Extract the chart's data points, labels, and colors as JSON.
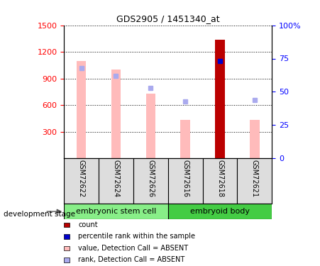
{
  "title": "GDS2905 / 1451340_at",
  "samples": [
    "GSM72622",
    "GSM72624",
    "GSM72626",
    "GSM72616",
    "GSM72618",
    "GSM72621"
  ],
  "groups": {
    "embryonic stem cell": [
      0,
      1,
      2
    ],
    "embryoid body": [
      3,
      4,
      5
    ]
  },
  "group_colors": {
    "embryonic stem cell": "#88ee88",
    "embryoid body": "#44cc44"
  },
  "bar_values_absent": [
    1100,
    1000,
    730,
    430,
    null,
    430
  ],
  "bar_values_count": [
    null,
    null,
    null,
    null,
    1340,
    null
  ],
  "rank_absent_pct": [
    68,
    62,
    53,
    43,
    null,
    44
  ],
  "rank_count_pct": [
    null,
    null,
    null,
    null,
    73,
    null
  ],
  "ylim_left": [
    0,
    1500
  ],
  "ylim_right": [
    0,
    100
  ],
  "yticks_left": [
    300,
    600,
    900,
    1200,
    1500
  ],
  "yticks_right": [
    0,
    25,
    50,
    75,
    100
  ],
  "color_count": "#bb0000",
  "color_rank_count": "#0000cc",
  "color_absent_bar": "#ffbbbb",
  "color_absent_rank": "#aaaaee",
  "legend_items": [
    {
      "label": "count",
      "color": "#bb0000"
    },
    {
      "label": "percentile rank within the sample",
      "color": "#0000cc"
    },
    {
      "label": "value, Detection Call = ABSENT",
      "color": "#ffbbbb"
    },
    {
      "label": "rank, Detection Call = ABSENT",
      "color": "#aaaaee"
    }
  ],
  "fig_width": 4.51,
  "fig_height": 3.75,
  "dpi": 100
}
